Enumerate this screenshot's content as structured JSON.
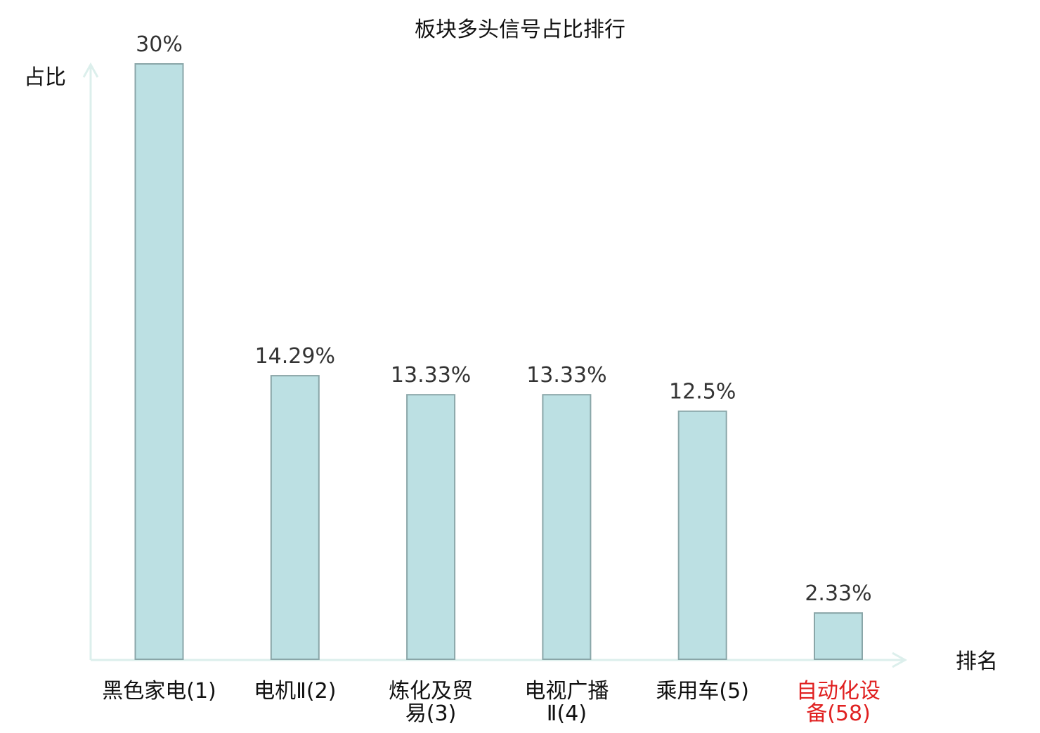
{
  "chart_data": {
    "type": "bar",
    "title": "板块多头信号占比排行",
    "ylabel": "占比",
    "xlabel": "排名",
    "categories": [
      [
        "黑色家电(1)"
      ],
      [
        "电机Ⅱ(2)"
      ],
      [
        "炼化及贸",
        "易(3)"
      ],
      [
        "电视广播",
        "Ⅱ(4)"
      ],
      [
        "乘用车(5)"
      ],
      [
        "自动化设",
        "备(58)"
      ]
    ],
    "values": [
      30,
      14.29,
      13.33,
      13.33,
      12.5,
      2.33
    ],
    "value_labels": [
      "30%",
      "14.29%",
      "13.33%",
      "13.33%",
      "12.5%",
      "2.33%"
    ],
    "highlight_index": 5,
    "ylim": [
      0,
      30
    ],
    "grid": false,
    "colors": {
      "bar_fill": "#bce0e3",
      "bar_stroke": "#8aa6a8",
      "axis": "#dcefec",
      "text": "#333333",
      "highlight_text": "#e02020"
    }
  }
}
